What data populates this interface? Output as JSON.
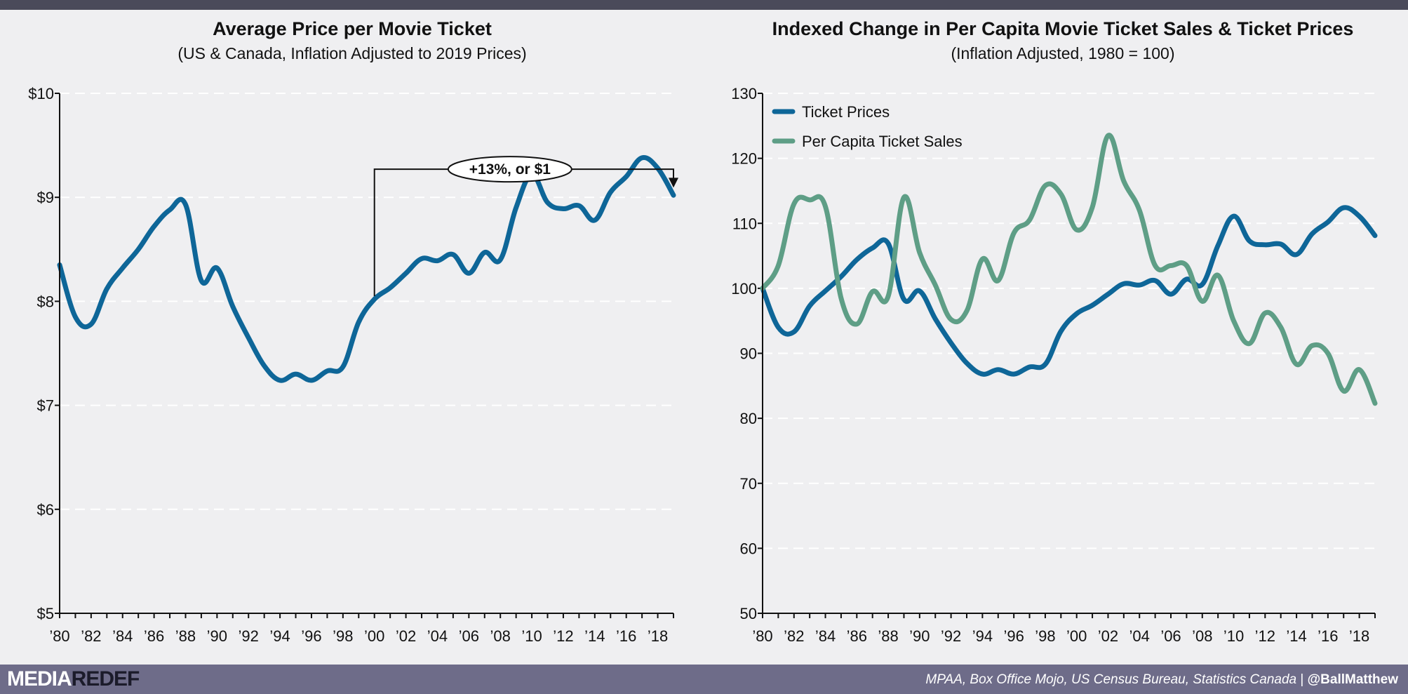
{
  "footer": {
    "logo_part1": "MEDIA",
    "logo_part2": "REDEF",
    "sources": "MPAA, Box Office Mojo, US Census Bureau, Statistics Canada",
    "separator": "|",
    "handle": "@BallMatthew"
  },
  "colors": {
    "ticket_prices": "#0e6698",
    "ticket_sales": "#5e9e86",
    "background": "#efeff1",
    "header_bar": "#4a4a5a",
    "footer_bar": "#6e6c89"
  },
  "chart_data": [
    {
      "type": "line",
      "title": "Average Price per Movie Ticket",
      "subtitle": "(US & Canada, Inflation Adjusted to 2019 Prices)",
      "xlabel": "",
      "ylabel": "",
      "xlim": [
        1980,
        2019
      ],
      "ylim": [
        5,
        10
      ],
      "yticks": [
        5,
        6,
        7,
        8,
        9,
        10
      ],
      "ytick_labels": [
        "$5",
        "$6",
        "$7",
        "$8",
        "$9",
        "$10"
      ],
      "xticks": [
        1980,
        1982,
        1984,
        1986,
        1988,
        1990,
        1992,
        1994,
        1996,
        1998,
        2000,
        2002,
        2004,
        2006,
        2008,
        2010,
        2012,
        2014,
        2016,
        2018
      ],
      "xtick_labels": [
        "’80",
        "’82",
        "’84",
        "’86",
        "’88",
        "’90",
        "’92",
        "’94",
        "’96",
        "’98",
        "’00",
        "’02",
        "’04",
        "’06",
        "’08",
        "’10",
        "’12",
        "’14",
        "’16",
        "’18"
      ],
      "grid": true,
      "legend": null,
      "series": [
        {
          "color": "#0e6698",
          "x": [
            1980,
            1981,
            1982,
            1983,
            1984,
            1985,
            1986,
            1987,
            1988,
            1989,
            1990,
            1991,
            1992,
            1993,
            1994,
            1995,
            1996,
            1997,
            1998,
            1999,
            2000,
            2001,
            2002,
            2003,
            2004,
            2005,
            2006,
            2007,
            2008,
            2009,
            2010,
            2011,
            2012,
            2013,
            2014,
            2015,
            2016,
            2017,
            2018,
            2019
          ],
          "values": [
            8.35,
            7.85,
            7.78,
            8.12,
            8.32,
            8.5,
            8.72,
            8.88,
            8.93,
            8.2,
            8.32,
            7.95,
            7.65,
            7.38,
            7.24,
            7.3,
            7.24,
            7.33,
            7.37,
            7.8,
            8.02,
            8.13,
            8.27,
            8.41,
            8.39,
            8.45,
            8.27,
            8.47,
            8.4,
            8.9,
            9.22,
            8.95,
            8.89,
            8.92,
            8.78,
            9.05,
            9.2,
            9.38,
            9.28,
            9.02
          ]
        }
      ],
      "annotation": {
        "text": "+13%, or $1",
        "from_x": 2000,
        "from_y": 8.05,
        "to_x": 2019,
        "to_y": 9.1,
        "bracket_y": 9.27
      }
    },
    {
      "type": "line",
      "title": "Indexed Change in Per Capita Movie Ticket Sales & Ticket Prices",
      "subtitle": "(Inflation Adjusted, 1980 = 100)",
      "xlabel": "",
      "ylabel": "",
      "xlim": [
        1980,
        2019
      ],
      "ylim": [
        50,
        130
      ],
      "yticks": [
        50,
        60,
        70,
        80,
        90,
        100,
        110,
        120,
        130
      ],
      "ytick_labels": [
        "50",
        "60",
        "70",
        "80",
        "90",
        "100",
        "110",
        "120",
        "130"
      ],
      "xticks": [
        1980,
        1982,
        1984,
        1986,
        1988,
        1990,
        1992,
        1994,
        1996,
        1998,
        2000,
        2002,
        2004,
        2006,
        2008,
        2010,
        2012,
        2014,
        2016,
        2018
      ],
      "xtick_labels": [
        "’80",
        "’82",
        "’84",
        "’86",
        "’88",
        "’90",
        "’92",
        "’94",
        "’96",
        "’98",
        "’00",
        "’02",
        "’04",
        "’06",
        "’08",
        "’10",
        "’12",
        "’14",
        "’16",
        "’18"
      ],
      "grid": true,
      "legend": "top-left",
      "series": [
        {
          "name": "Ticket Prices",
          "color": "#0e6698",
          "x": [
            1980,
            1981,
            1982,
            1983,
            1984,
            1985,
            1986,
            1987,
            1988,
            1989,
            1990,
            1991,
            1992,
            1993,
            1994,
            1995,
            1996,
            1997,
            1998,
            1999,
            2000,
            2001,
            2002,
            2003,
            2004,
            2005,
            2006,
            2007,
            2008,
            2009,
            2010,
            2011,
            2012,
            2013,
            2014,
            2015,
            2016,
            2017,
            2018,
            2019
          ],
          "values": [
            100,
            94,
            93.3,
            97.3,
            99.6,
            101.8,
            104.4,
            106.2,
            106.9,
            98.3,
            99.6,
            95.3,
            91.6,
            88.5,
            86.8,
            87.5,
            86.8,
            87.9,
            88.3,
            93.4,
            96.1,
            97.4,
            99.1,
            100.7,
            100.5,
            101.2,
            99.1,
            101.4,
            100.6,
            106.6,
            111.1,
            107.3,
            106.7,
            106.8,
            105.2,
            108.4,
            110.2,
            112.4,
            111.1,
            108.1
          ]
        },
        {
          "name": "Per Capita Ticket Sales",
          "color": "#5e9e86",
          "x": [
            1980,
            1981,
            1982,
            1983,
            1984,
            1985,
            1986,
            1987,
            1988,
            1989,
            1990,
            1991,
            1992,
            1993,
            1994,
            1995,
            1996,
            1997,
            1998,
            1999,
            2000,
            2001,
            2002,
            2003,
            2004,
            2005,
            2006,
            2007,
            2008,
            2009,
            2010,
            2011,
            2012,
            2013,
            2014,
            2015,
            2016,
            2017,
            2018,
            2019
          ],
          "values": [
            100,
            103.5,
            113,
            113.6,
            112.6,
            98.5,
            94.5,
            99.5,
            98.8,
            114,
            105.5,
            100.5,
            95.2,
            96.5,
            104.5,
            101.2,
            108.5,
            110.5,
            115.8,
            114.5,
            109,
            112.5,
            123.5,
            116.5,
            112,
            103.5,
            103.5,
            103.5,
            98,
            102,
            95,
            91.5,
            96.2,
            94,
            88.3,
            91.2,
            90,
            84.2,
            87.5,
            82.3
          ]
        }
      ]
    }
  ]
}
